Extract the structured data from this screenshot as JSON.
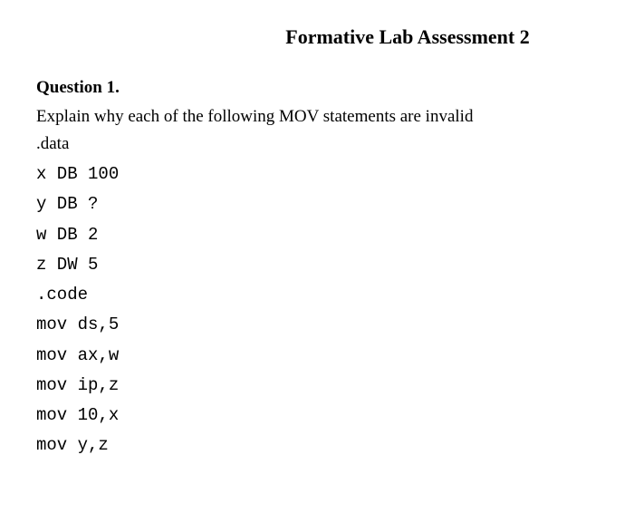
{
  "title": "Formative Lab Assessment 2",
  "question": {
    "number": "Question 1.",
    "prompt": "Explain why each of the following MOV statements are invalid",
    "data_label": ".data",
    "code_lines": [
      "x DB 100",
      "y DB ?",
      "w DB 2",
      "z DW 5",
      ".code",
      "mov ds,5",
      "mov ax,w",
      "mov ip,z",
      "mov 10,x",
      "mov y,z"
    ]
  },
  "colors": {
    "background": "#ffffff",
    "text": "#000000"
  },
  "typography": {
    "title_fontsize": 22,
    "body_fontsize": 19,
    "code_fontsize": 19,
    "title_weight": "bold",
    "question_number_weight": "bold",
    "body_font": "Times New Roman",
    "code_font": "Courier New"
  }
}
